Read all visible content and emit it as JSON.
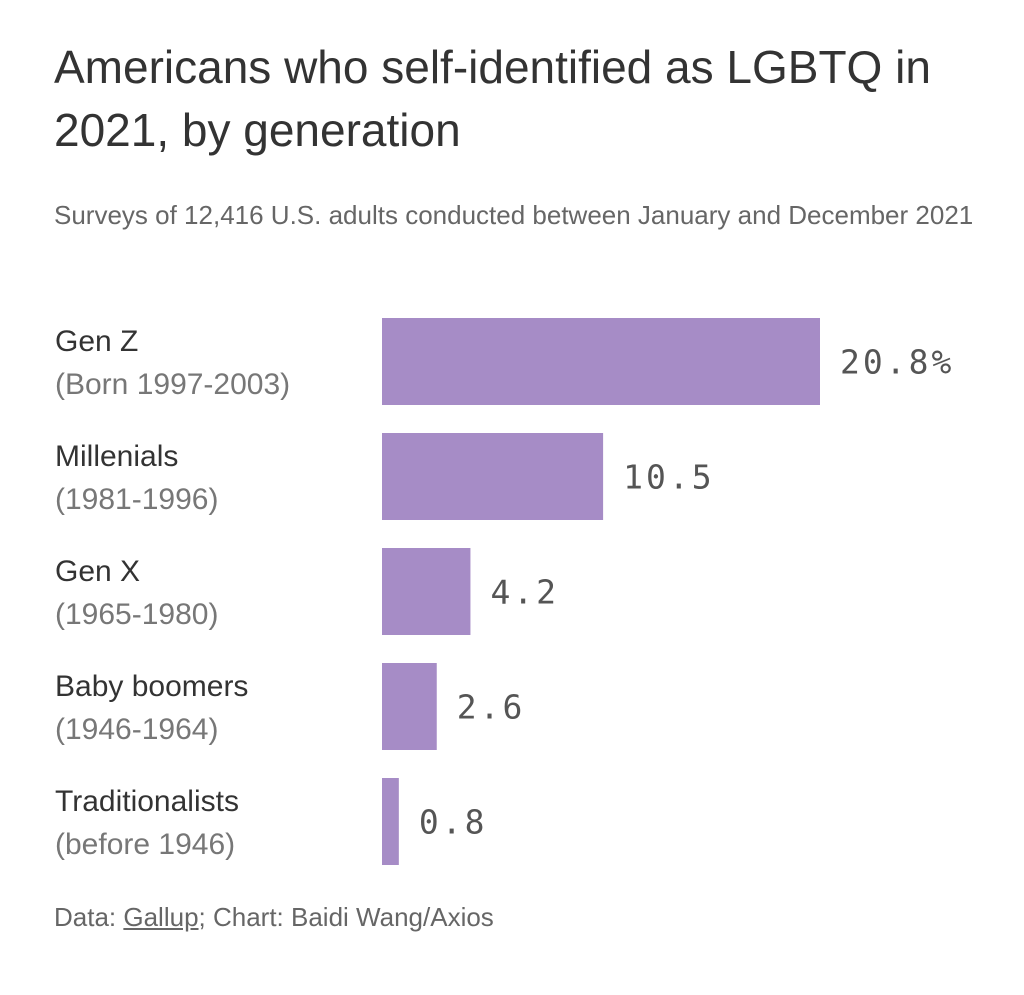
{
  "chart_data": {
    "type": "bar",
    "orientation": "horizontal",
    "title": "Americans who self-identified as LGBTQ in 2021, by generation",
    "subtitle": "Surveys of 12,416 U.S. adults conducted between January and December 2021",
    "categories": [
      "Gen Z",
      "Millenials",
      "Gen X",
      "Baby boomers",
      "Traditionalists"
    ],
    "category_sublabels": [
      "(Born 1997-2003)",
      "(1981-1996)",
      "(1965-1980)",
      "(1946-1964)",
      "(before 1946)"
    ],
    "values": [
      20.8,
      10.5,
      4.2,
      2.6,
      0.8
    ],
    "data_labels": [
      "20.8%",
      "10.5",
      "4.2",
      "2.6",
      "0.8"
    ],
    "xlim": [
      0,
      20.8
    ],
    "grid": false,
    "bar_color": "#a68cc6"
  },
  "footer": {
    "prefix": "Data: ",
    "source_link": "Gallup",
    "suffix": "; Chart: Baidi Wang/Axios"
  }
}
